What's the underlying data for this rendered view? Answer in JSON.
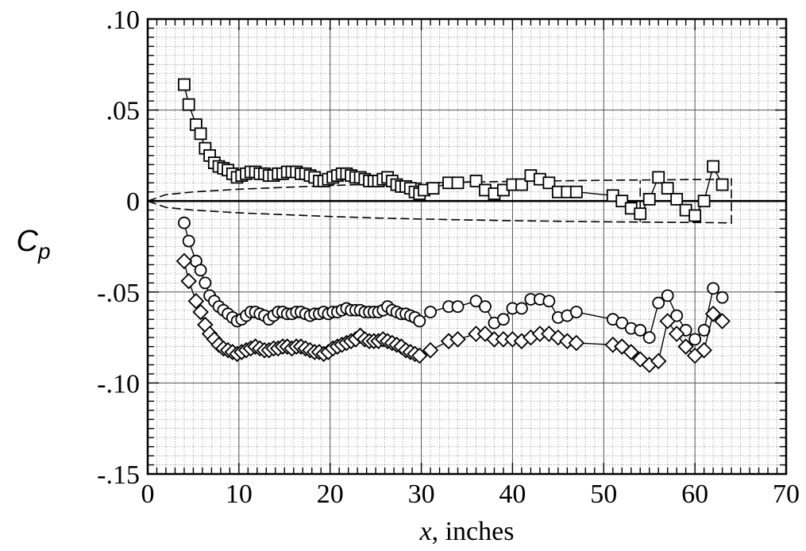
{
  "chart_data": {
    "type": "scatter",
    "title": "",
    "xlabel_var": "x",
    "xlabel_rest": ", inches",
    "ylabel_main": "C",
    "ylabel_sub": "p",
    "xlim": [
      0,
      70
    ],
    "ylim": [
      -0.15,
      0.1
    ],
    "x_ticks": [
      0,
      10,
      20,
      30,
      40,
      50,
      60,
      70
    ],
    "x_tick_labels": [
      "0",
      "10",
      "20",
      "30",
      "40",
      "50",
      "60",
      "70"
    ],
    "y_ticks": [
      0.1,
      0.05,
      0,
      -0.05,
      -0.1,
      -0.15
    ],
    "y_tick_labels": [
      ".10",
      ".05",
      "0",
      "-.05",
      "-.10",
      "-.15"
    ],
    "grid": true,
    "minor_grid": true,
    "legend": "none",
    "series": [
      {
        "marker": "square",
        "x": [
          4.0,
          4.5,
          5.3,
          5.8,
          6.3,
          6.8,
          7.3,
          7.8,
          8.3,
          8.8,
          9.3,
          9.8,
          10.3,
          10.8,
          11.3,
          11.8,
          12.3,
          12.8,
          13.3,
          13.8,
          14.3,
          14.8,
          15.3,
          15.8,
          16.3,
          16.8,
          17.3,
          17.8,
          18.3,
          18.8,
          19.3,
          19.8,
          20.3,
          20.8,
          21.3,
          21.8,
          22.3,
          22.8,
          23.3,
          23.8,
          24.3,
          24.8,
          25.3,
          25.8,
          26.3,
          26.8,
          27.3,
          27.8,
          28.3,
          28.8,
          29.3,
          29.8,
          30.3,
          31.3,
          33.0,
          34.0,
          36.0,
          37.0,
          38.0,
          39.0,
          40.0,
          41.0,
          42.0,
          43.0,
          44.0,
          45.0,
          46.0,
          47.0,
          51.0,
          52.0,
          53.0,
          54.0,
          55.0,
          56.0,
          57.0,
          58.0,
          59.0,
          60.0,
          61.0,
          62.0,
          63.0
        ],
        "y": [
          0.064,
          0.053,
          0.042,
          0.037,
          0.029,
          0.025,
          0.021,
          0.019,
          0.018,
          0.017,
          0.015,
          0.013,
          0.014,
          0.015,
          0.016,
          0.016,
          0.015,
          0.015,
          0.014,
          0.014,
          0.015,
          0.015,
          0.016,
          0.016,
          0.016,
          0.015,
          0.015,
          0.014,
          0.013,
          0.011,
          0.011,
          0.012,
          0.013,
          0.014,
          0.015,
          0.015,
          0.014,
          0.013,
          0.013,
          0.012,
          0.011,
          0.011,
          0.011,
          0.012,
          0.013,
          0.011,
          0.009,
          0.008,
          0.008,
          0.007,
          0.005,
          0.004,
          0.006,
          0.007,
          0.01,
          0.01,
          0.011,
          0.006,
          0.004,
          0.006,
          0.009,
          0.009,
          0.014,
          0.012,
          0.01,
          0.005,
          0.005,
          0.005,
          0.003,
          0.0,
          -0.004,
          -0.007,
          0.001,
          0.013,
          0.007,
          0.001,
          -0.005,
          -0.008,
          0.0,
          0.019,
          0.009
        ]
      },
      {
        "marker": "circle",
        "x": [
          4.0,
          4.5,
          5.3,
          5.8,
          6.3,
          6.8,
          7.3,
          7.8,
          8.3,
          8.8,
          9.3,
          9.8,
          10.3,
          10.8,
          11.3,
          11.8,
          12.3,
          12.8,
          13.3,
          13.8,
          14.3,
          14.8,
          15.3,
          15.8,
          16.3,
          16.8,
          17.3,
          17.8,
          18.3,
          18.8,
          19.3,
          19.8,
          20.3,
          20.8,
          21.3,
          21.8,
          22.3,
          22.8,
          23.3,
          23.8,
          24.3,
          24.8,
          25.3,
          25.8,
          26.3,
          26.8,
          27.3,
          27.8,
          28.3,
          28.8,
          29.3,
          29.8,
          31.0,
          33.0,
          34.0,
          36.0,
          37.0,
          38.0,
          39.0,
          40.0,
          41.0,
          42.0,
          43.0,
          44.0,
          45.0,
          46.0,
          47.0,
          51.0,
          52.0,
          53.0,
          54.0,
          55.0,
          56.0,
          57.0,
          58.0,
          59.0,
          60.0,
          61.0,
          62.0,
          63.0
        ],
        "y": [
          -0.012,
          -0.022,
          -0.033,
          -0.038,
          -0.045,
          -0.052,
          -0.055,
          -0.058,
          -0.06,
          -0.062,
          -0.064,
          -0.066,
          -0.065,
          -0.063,
          -0.061,
          -0.061,
          -0.062,
          -0.063,
          -0.065,
          -0.063,
          -0.061,
          -0.061,
          -0.062,
          -0.062,
          -0.061,
          -0.061,
          -0.062,
          -0.063,
          -0.062,
          -0.062,
          -0.061,
          -0.062,
          -0.061,
          -0.061,
          -0.06,
          -0.059,
          -0.06,
          -0.06,
          -0.06,
          -0.061,
          -0.061,
          -0.061,
          -0.061,
          -0.06,
          -0.058,
          -0.06,
          -0.061,
          -0.062,
          -0.062,
          -0.063,
          -0.064,
          -0.066,
          -0.061,
          -0.058,
          -0.058,
          -0.055,
          -0.058,
          -0.067,
          -0.065,
          -0.059,
          -0.059,
          -0.054,
          -0.054,
          -0.055,
          -0.064,
          -0.063,
          -0.061,
          -0.065,
          -0.067,
          -0.07,
          -0.071,
          -0.075,
          -0.056,
          -0.052,
          -0.063,
          -0.071,
          -0.076,
          -0.071,
          -0.048,
          -0.053
        ]
      },
      {
        "marker": "diamond",
        "x": [
          4.0,
          4.5,
          5.3,
          5.8,
          6.3,
          6.8,
          7.3,
          7.8,
          8.3,
          8.8,
          9.3,
          9.8,
          10.3,
          10.8,
          11.3,
          11.8,
          12.3,
          12.8,
          13.3,
          13.8,
          14.3,
          14.8,
          15.3,
          15.8,
          16.3,
          16.8,
          17.3,
          17.8,
          18.3,
          18.8,
          19.3,
          19.8,
          20.3,
          20.8,
          21.3,
          21.8,
          22.3,
          22.8,
          23.3,
          23.8,
          24.3,
          24.8,
          25.3,
          25.8,
          26.3,
          26.8,
          27.3,
          27.8,
          28.3,
          28.8,
          29.3,
          29.8,
          31.0,
          33.0,
          34.0,
          36.0,
          37.0,
          38.0,
          39.0,
          40.0,
          41.0,
          42.0,
          43.0,
          44.0,
          45.0,
          46.0,
          47.0,
          51.0,
          52.0,
          53.0,
          54.0,
          55.0,
          56.0,
          57.0,
          58.0,
          59.0,
          60.0,
          61.0,
          62.0,
          63.0
        ],
        "y": [
          -0.033,
          -0.044,
          -0.055,
          -0.061,
          -0.068,
          -0.073,
          -0.076,
          -0.079,
          -0.081,
          -0.082,
          -0.083,
          -0.084,
          -0.083,
          -0.082,
          -0.081,
          -0.08,
          -0.081,
          -0.082,
          -0.082,
          -0.081,
          -0.081,
          -0.08,
          -0.08,
          -0.081,
          -0.08,
          -0.08,
          -0.081,
          -0.082,
          -0.083,
          -0.083,
          -0.084,
          -0.083,
          -0.081,
          -0.08,
          -0.079,
          -0.078,
          -0.077,
          -0.076,
          -0.074,
          -0.076,
          -0.077,
          -0.077,
          -0.077,
          -0.076,
          -0.077,
          -0.078,
          -0.079,
          -0.08,
          -0.082,
          -0.083,
          -0.084,
          -0.085,
          -0.082,
          -0.077,
          -0.076,
          -0.073,
          -0.073,
          -0.076,
          -0.076,
          -0.076,
          -0.077,
          -0.075,
          -0.073,
          -0.073,
          -0.075,
          -0.077,
          -0.078,
          -0.079,
          -0.08,
          -0.083,
          -0.087,
          -0.09,
          -0.088,
          -0.066,
          -0.073,
          -0.08,
          -0.085,
          -0.082,
          -0.062,
          -0.066
        ]
      }
    ],
    "reference_lines": [
      {
        "style": "solid",
        "x": [
          0,
          70
        ],
        "y": [
          0,
          0
        ]
      },
      {
        "style": "dashed",
        "x": [
          0,
          2,
          5,
          10,
          15,
          20,
          25,
          30,
          35,
          40,
          45,
          50,
          55,
          60,
          64
        ],
        "y": [
          0,
          0.0035,
          0.005,
          0.0065,
          0.0075,
          0.0085,
          0.0093,
          0.0099,
          0.0104,
          0.0108,
          0.0111,
          0.0114,
          0.0116,
          0.0118,
          0.012
        ]
      },
      {
        "style": "dashed",
        "x": [
          0,
          2,
          5,
          10,
          15,
          20,
          25,
          30,
          35,
          40,
          45,
          50,
          55,
          60,
          64
        ],
        "y": [
          0,
          -0.0035,
          -0.005,
          -0.0065,
          -0.0075,
          -0.0085,
          -0.0093,
          -0.0099,
          -0.0104,
          -0.0108,
          -0.0111,
          -0.0114,
          -0.0116,
          -0.0118,
          -0.012
        ]
      },
      {
        "style": "dashed",
        "x": [
          64,
          64
        ],
        "y": [
          -0.0125,
          0.0125
        ]
      },
      {
        "style": "dashed",
        "x": [
          54,
          54
        ],
        "y": [
          -0.0115,
          0.0115
        ]
      }
    ]
  }
}
